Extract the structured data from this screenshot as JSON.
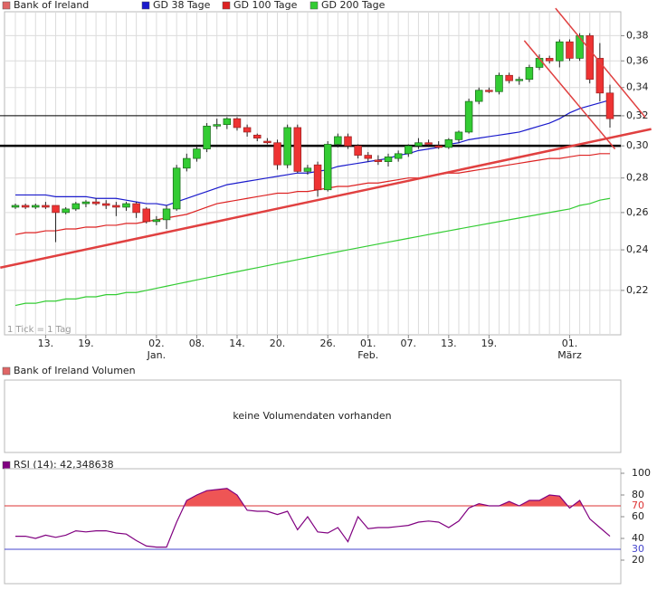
{
  "chart_data": [
    {
      "type": "candlestick",
      "name": "Bank of Ireland",
      "color": "#e06666",
      "up_color": "#33cc33",
      "down_color": "#ee3333",
      "categories": [
        null,
        null,
        null,
        "13.",
        null,
        null,
        null,
        "19.",
        null,
        null,
        null,
        null,
        null,
        null,
        "02.",
        null,
        null,
        null,
        "08.",
        null,
        null,
        null,
        "14.",
        null,
        null,
        null,
        "20.",
        null,
        null,
        null,
        null,
        "26.",
        null,
        null,
        null,
        "01.",
        null,
        null,
        null,
        "07.",
        null,
        null,
        null,
        "13.",
        null,
        null,
        null,
        "19.",
        null,
        null,
        null,
        null,
        null,
        null,
        null,
        "01.",
        null,
        null,
        null,
        null
      ],
      "month_labels": [
        null,
        null,
        null,
        null,
        null,
        null,
        null,
        null,
        null,
        null,
        null,
        null,
        null,
        null,
        "Jan.",
        null,
        null,
        null,
        null,
        null,
        null,
        null,
        null,
        null,
        null,
        null,
        null,
        null,
        null,
        null,
        null,
        null,
        null,
        null,
        null,
        "Feb.",
        null,
        null,
        null,
        null,
        null,
        null,
        null,
        null,
        null,
        null,
        null,
        null,
        null,
        null,
        null,
        null,
        null,
        null,
        null,
        "März",
        null,
        null,
        null,
        null
      ],
      "open": [
        0.263,
        0.264,
        0.263,
        0.264,
        0.264,
        0.26,
        0.262,
        0.265,
        0.266,
        0.265,
        0.264,
        0.263,
        0.265,
        0.262,
        0.255,
        0.256,
        0.262,
        0.286,
        0.292,
        0.298,
        0.313,
        0.314,
        0.318,
        0.312,
        0.307,
        0.303,
        0.302,
        0.288,
        0.312,
        0.284,
        0.288,
        0.273,
        0.301,
        0.306,
        0.3,
        0.294,
        0.291,
        0.29,
        0.292,
        0.295,
        0.3,
        0.302,
        0.3,
        0.299,
        0.304,
        0.309,
        0.33,
        0.338,
        0.337,
        0.349,
        0.345,
        0.346,
        0.355,
        0.362,
        0.36,
        0.375,
        0.362,
        0.38,
        0.362,
        0.336
      ],
      "high": [
        0.265,
        0.265,
        0.265,
        0.266,
        0.264,
        0.263,
        0.266,
        0.267,
        0.268,
        0.267,
        0.266,
        0.266,
        0.266,
        0.263,
        0.258,
        0.264,
        0.288,
        0.295,
        0.3,
        0.315,
        0.318,
        0.319,
        0.319,
        0.314,
        0.308,
        0.305,
        0.304,
        0.314,
        0.314,
        0.288,
        0.29,
        0.303,
        0.308,
        0.308,
        0.301,
        0.296,
        0.294,
        0.295,
        0.297,
        0.301,
        0.305,
        0.304,
        0.303,
        0.305,
        0.31,
        0.332,
        0.34,
        0.34,
        0.351,
        0.351,
        0.348,
        0.357,
        0.365,
        0.364,
        0.377,
        0.377,
        0.382,
        0.382,
        0.374,
        0.342
      ],
      "low": [
        0.262,
        0.262,
        0.262,
        0.262,
        0.244,
        0.259,
        0.261,
        0.263,
        0.264,
        0.262,
        0.258,
        0.261,
        0.257,
        0.254,
        0.253,
        0.251,
        0.261,
        0.284,
        0.29,
        0.296,
        0.311,
        0.311,
        0.31,
        0.306,
        0.303,
        0.301,
        0.285,
        0.286,
        0.283,
        0.282,
        0.269,
        0.272,
        0.299,
        0.298,
        0.292,
        0.29,
        0.288,
        0.287,
        0.29,
        0.293,
        0.298,
        0.3,
        0.298,
        0.298,
        0.302,
        0.308,
        0.328,
        0.336,
        0.335,
        0.343,
        0.342,
        0.344,
        0.353,
        0.358,
        0.355,
        0.36,
        0.36,
        0.343,
        0.33,
        0.312
      ],
      "close": [
        0.264,
        0.263,
        0.264,
        0.263,
        0.26,
        0.262,
        0.265,
        0.266,
        0.265,
        0.264,
        0.263,
        0.265,
        0.26,
        0.255,
        0.256,
        0.262,
        0.286,
        0.292,
        0.298,
        0.313,
        0.314,
        0.318,
        0.312,
        0.309,
        0.305,
        0.302,
        0.288,
        0.312,
        0.284,
        0.286,
        0.273,
        0.301,
        0.306,
        0.3,
        0.294,
        0.292,
        0.29,
        0.293,
        0.295,
        0.3,
        0.302,
        0.301,
        0.299,
        0.304,
        0.309,
        0.33,
        0.338,
        0.337,
        0.349,
        0.345,
        0.346,
        0.355,
        0.362,
        0.36,
        0.375,
        0.362,
        0.38,
        0.346,
        0.336,
        0.318
      ],
      "series": [
        {
          "name": "GD 38 Tage",
          "color": "#1a1acc",
          "values": [
            0.27,
            0.27,
            0.27,
            0.27,
            0.269,
            0.269,
            0.269,
            0.269,
            0.268,
            0.268,
            0.268,
            0.267,
            0.266,
            0.265,
            0.265,
            0.264,
            0.266,
            0.268,
            0.27,
            0.272,
            0.274,
            0.276,
            0.277,
            0.278,
            0.279,
            0.28,
            0.281,
            0.282,
            0.283,
            0.283,
            0.284,
            0.285,
            0.287,
            0.288,
            0.289,
            0.29,
            0.291,
            0.292,
            0.294,
            0.295,
            0.297,
            0.298,
            0.299,
            0.301,
            0.302,
            0.304,
            0.305,
            0.306,
            0.307,
            0.308,
            0.309,
            0.311,
            0.313,
            0.315,
            0.318,
            0.322,
            0.325,
            0.327,
            0.329,
            0.331
          ]
        },
        {
          "name": "GD 100 Tage",
          "color": "#dd2222",
          "values": [
            0.248,
            0.249,
            0.249,
            0.25,
            0.25,
            0.251,
            0.251,
            0.252,
            0.252,
            0.253,
            0.253,
            0.254,
            0.254,
            0.255,
            0.256,
            0.257,
            0.258,
            0.259,
            0.261,
            0.263,
            0.265,
            0.266,
            0.267,
            0.268,
            0.269,
            0.27,
            0.271,
            0.271,
            0.272,
            0.272,
            0.273,
            0.274,
            0.275,
            0.275,
            0.276,
            0.277,
            0.277,
            0.278,
            0.279,
            0.28,
            0.28,
            0.281,
            0.282,
            0.283,
            0.283,
            0.284,
            0.285,
            0.286,
            0.287,
            0.288,
            0.289,
            0.29,
            0.291,
            0.292,
            0.292,
            0.293,
            0.294,
            0.294,
            0.295,
            0.295
          ]
        },
        {
          "name": "GD 200 Tage",
          "color": "#33cc33",
          "values": [
            0.213,
            0.214,
            0.214,
            0.215,
            0.215,
            0.216,
            0.216,
            0.217,
            0.217,
            0.218,
            0.218,
            0.219,
            0.219,
            0.22,
            0.221,
            0.222,
            0.223,
            0.224,
            0.225,
            0.226,
            0.227,
            0.228,
            0.229,
            0.23,
            0.231,
            0.232,
            0.233,
            0.234,
            0.235,
            0.236,
            0.237,
            0.238,
            0.239,
            0.24,
            0.241,
            0.242,
            0.243,
            0.244,
            0.245,
            0.246,
            0.247,
            0.248,
            0.249,
            0.25,
            0.251,
            0.252,
            0.253,
            0.254,
            0.255,
            0.256,
            0.257,
            0.258,
            0.259,
            0.26,
            0.261,
            0.262,
            0.264,
            0.265,
            0.267,
            0.268
          ]
        }
      ],
      "ylim": [
        0.2,
        0.4
      ],
      "log_scale": true,
      "grid": true,
      "yticks": [
        {
          "value": 0.22,
          "label": "0,22"
        },
        {
          "value": 0.24,
          "label": "0,24"
        },
        {
          "value": 0.26,
          "label": "0,26"
        },
        {
          "value": 0.28,
          "label": "0,28"
        },
        {
          "value": 0.3,
          "label": "0,30"
        },
        {
          "value": 0.32,
          "label": "0,32"
        },
        {
          "value": 0.34,
          "label": "0,34"
        },
        {
          "value": 0.36,
          "label": "0,36"
        },
        {
          "value": 0.38,
          "label": "0,38"
        }
      ],
      "hlines": [
        {
          "value": 0.32,
          "width": 1,
          "color": "#000000"
        },
        {
          "value": 0.3,
          "width": 2.5,
          "color": "#000000"
        }
      ],
      "trendlines": [
        {
          "x": [
            -1.5,
            63.1
          ],
          "y": [
            0.231,
            0.311
          ],
          "color": "#e04040",
          "width": 2.5
        },
        {
          "x": [
            50.5,
            59.5
          ],
          "y": [
            0.376,
            0.298
          ],
          "color": "#e04040",
          "width": 1.5
        },
        {
          "x": [
            53.6,
            62.5
          ],
          "y": [
            0.403,
            0.319
          ],
          "color": "#e04040",
          "width": 1.5
        }
      ],
      "note": "1 Tick = 1 Tag"
    },
    {
      "type": "empty",
      "title": "Bank of Ireland Volumen",
      "color": "#e06666",
      "message": "keine Volumendaten vorhanden"
    },
    {
      "type": "line",
      "title": "RSI (14): 42,348638",
      "color": "#800080",
      "values": [
        42,
        42,
        40,
        43,
        41,
        43,
        47,
        46,
        47,
        47,
        45,
        44,
        38,
        33,
        32,
        32,
        55,
        75,
        80,
        84,
        85,
        86,
        80,
        66,
        65,
        65,
        62,
        65,
        48,
        60,
        46,
        45,
        50,
        37,
        60,
        49,
        50,
        50,
        51,
        52,
        55,
        56,
        55,
        50,
        56,
        68,
        72,
        70,
        70,
        74,
        70,
        75,
        75,
        80,
        79,
        68,
        75,
        58,
        50,
        42
      ],
      "ylim": [
        0,
        100
      ],
      "yticks": [
        20,
        40,
        60,
        80,
        100
      ],
      "reference_lines": [
        {
          "value": 70,
          "color": "#dd3333",
          "fill": "#ee5555"
        },
        {
          "value": 30,
          "color": "#4444cc"
        }
      ]
    }
  ]
}
